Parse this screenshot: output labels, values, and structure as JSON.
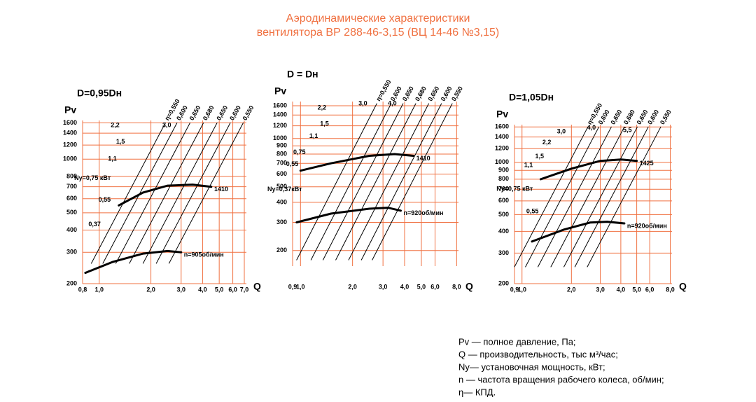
{
  "header": {
    "title": [
      "Аэродинамические характеристики",
      "вентилятора  ВР 288-46-3,15 (ВЦ 14-46 №3,15)"
    ]
  },
  "notes": [
    "Pv — полное давление, Па;",
    "Q  — производительность, тыс м³/час;",
    "Ny— установочная мощность, кВт;",
    "n — частота вращения рабочего колеса, об/мин;",
    "η— КПД."
  ],
  "chart_data": [
    {
      "type": "line",
      "title": "D=0,95Dн",
      "ylabel": "Pv",
      "xlabel": "Q",
      "xscale": "log",
      "yscale": "log",
      "grid": true,
      "grid_color": "#f07040",
      "xlim": [
        0.8,
        7.2
      ],
      "xticks": [
        {
          "value": 0.8,
          "label": "0,8"
        },
        {
          "value": 1.0,
          "label": "1,0"
        },
        {
          "value": 2.0,
          "label": "2,0"
        },
        {
          "value": 3.0,
          "label": "3,0"
        },
        {
          "value": 4.0,
          "label": "4,0"
        },
        {
          "value": 5.0,
          "label": "5,0"
        },
        {
          "value": 6.0,
          "label": "6,0"
        },
        {
          "value": 7.0,
          "label": "7,0"
        }
      ],
      "ylim": [
        200,
        1650
      ],
      "yticks": [
        200,
        300,
        400,
        500,
        600,
        700,
        800,
        1000,
        1200,
        1400,
        1600
      ],
      "series": [
        {
          "name": "1410",
          "color": "#000",
          "line_width": 3,
          "x": [
            1.3,
            1.8,
            2.5,
            3.5,
            4.5
          ],
          "values": [
            550,
            650,
            710,
            720,
            700
          ]
        },
        {
          "name": "n=905об/мин",
          "color": "#000",
          "line_width": 3,
          "x": [
            0.83,
            1.2,
            1.8,
            2.5,
            3.0
          ],
          "values": [
            230,
            265,
            295,
            305,
            300
          ]
        },
        {
          "name": "η=0,550",
          "color": "#000",
          "line_width": 1,
          "x": [
            0.9,
            2.43
          ],
          "values": [
            260,
            1600
          ]
        },
        {
          "name": "0,600",
          "color": "#000",
          "line_width": 1,
          "x": [
            1.05,
            2.84
          ],
          "values": [
            260,
            1600
          ]
        },
        {
          "name": "0,650",
          "color": "#000",
          "line_width": 1,
          "x": [
            1.25,
            3.38
          ],
          "values": [
            260,
            1600
          ]
        },
        {
          "name": "0,680",
          "color": "#000",
          "line_width": 1,
          "x": [
            1.5,
            4.05
          ],
          "values": [
            260,
            1600
          ]
        },
        {
          "name": "0,650",
          "color": "#000",
          "line_width": 1,
          "x": [
            1.8,
            4.86
          ],
          "values": [
            260,
            1600
          ]
        },
        {
          "name": "0,600",
          "color": "#000",
          "line_width": 1,
          "x": [
            2.15,
            5.8
          ],
          "values": [
            260,
            1600
          ]
        },
        {
          "name": "0,550",
          "color": "#000",
          "line_width": 1,
          "x": [
            2.55,
            6.9
          ],
          "values": [
            260,
            1600
          ]
        }
      ],
      "annotations": [
        {
          "text": "2,2",
          "x": 1.35,
          "y": 1550
        },
        {
          "text": "3,0",
          "x": 2.7,
          "y": 1550
        },
        {
          "text": "1,5",
          "x": 1.45,
          "y": 1250
        },
        {
          "text": "1,1",
          "x": 1.3,
          "y": 1000
        },
        {
          "text": "Ny=0,75 кВт",
          "x": 1.2,
          "y": 780
        },
        {
          "text": "0,55",
          "x": 1.2,
          "y": 590
        },
        {
          "text": "0,37",
          "x": 1.05,
          "y": 430
        }
      ]
    },
    {
      "type": "line",
      "title": "D = Dн",
      "ylabel": "Pv",
      "xlabel": "Q",
      "xscale": "log",
      "yscale": "log",
      "grid": true,
      "grid_color": "#f07040",
      "xlim": [
        0.9,
        8.2
      ],
      "xticks": [
        {
          "value": 0.9,
          "label": "0,9"
        },
        {
          "value": 1.0,
          "label": "1,0"
        },
        {
          "value": 2.0,
          "label": "2,0"
        },
        {
          "value": 3.0,
          "label": "3,0"
        },
        {
          "value": 4.0,
          "label": "4,0"
        },
        {
          "value": 5.0,
          "label": "5,0"
        },
        {
          "value": 6.0,
          "label": "6,0"
        },
        {
          "value": 8.0,
          "label": "8,0"
        }
      ],
      "ylim": [
        160,
        1700
      ],
      "yticks": [
        200,
        300,
        400,
        500,
        600,
        700,
        800,
        900,
        1000,
        1200,
        1400,
        1600
      ],
      "series": [
        {
          "name": "1410",
          "color": "#000",
          "line_width": 3,
          "x": [
            1.0,
            1.5,
            2.5,
            3.5,
            4.5
          ],
          "values": [
            630,
            700,
            780,
            800,
            780
          ]
        },
        {
          "name": "n=920об/мин",
          "color": "#000",
          "line_width": 3,
          "x": [
            0.95,
            1.5,
            2.5,
            3.2,
            3.8
          ],
          "values": [
            300,
            340,
            365,
            370,
            355
          ]
        },
        {
          "name": "η=0,550",
          "color": "#000",
          "line_width": 1,
          "x": [
            0.95,
            2.76
          ],
          "values": [
            175,
            1650
          ]
        },
        {
          "name": "0,600",
          "color": "#000",
          "line_width": 1,
          "x": [
            1.15,
            3.34
          ],
          "values": [
            175,
            1650
          ]
        },
        {
          "name": "0,650",
          "color": "#000",
          "line_width": 1,
          "x": [
            1.35,
            3.92
          ],
          "values": [
            175,
            1650
          ]
        },
        {
          "name": "0,680",
          "color": "#000",
          "line_width": 1,
          "x": [
            1.6,
            4.64
          ],
          "values": [
            175,
            1650
          ]
        },
        {
          "name": "0,650",
          "color": "#000",
          "line_width": 1,
          "x": [
            1.9,
            5.51
          ],
          "values": [
            175,
            1650
          ]
        },
        {
          "name": "0,600",
          "color": "#000",
          "line_width": 1,
          "x": [
            2.25,
            6.53
          ],
          "values": [
            175,
            1650
          ]
        },
        {
          "name": "0,550",
          "color": "#000",
          "line_width": 1,
          "x": [
            2.6,
            7.54
          ],
          "values": [
            175,
            1650
          ]
        }
      ],
      "annotations": [
        {
          "text": "2,2",
          "x": 1.45,
          "y": 1550
        },
        {
          "text": "3,0",
          "x": 2.5,
          "y": 1650
        },
        {
          "text": "4,0",
          "x": 3.7,
          "y": 1650
        },
        {
          "text": "1,5",
          "x": 1.5,
          "y": 1230
        },
        {
          "text": "1,1",
          "x": 1.3,
          "y": 1030
        },
        {
          "text": "0,75",
          "x": 1.1,
          "y": 820
        },
        {
          "text": "0,55",
          "x": 1.0,
          "y": 690
        },
        {
          "text": "Ny=0,37кВт",
          "x": 1.05,
          "y": 480
        }
      ]
    },
    {
      "type": "line",
      "title": "D=1,05Dн",
      "ylabel": "Pv",
      "xlabel": "Q",
      "xscale": "log",
      "yscale": "log",
      "grid": true,
      "grid_color": "#f07040",
      "xlim": [
        0.9,
        8.2
      ],
      "xticks": [
        {
          "value": 0.9,
          "label": "0,9"
        },
        {
          "value": 1.0,
          "label": "1,0"
        },
        {
          "value": 2.0,
          "label": "2,0"
        },
        {
          "value": 3.0,
          "label": "3,0"
        },
        {
          "value": 4.0,
          "label": "4,0"
        },
        {
          "value": 5.0,
          "label": "5,0"
        },
        {
          "value": 6.0,
          "label": "6,0"
        },
        {
          "value": 8.0,
          "label": "8,0"
        }
      ],
      "ylim": [
        200,
        1650
      ],
      "yticks": [
        200,
        300,
        400,
        500,
        600,
        700,
        800,
        900,
        1000,
        1200,
        1400,
        1600
      ],
      "series": [
        {
          "name": "1425",
          "color": "#000",
          "line_width": 3,
          "x": [
            1.3,
            2.0,
            3.0,
            4.0,
            5.0
          ],
          "values": [
            800,
            920,
            1020,
            1040,
            1020
          ]
        },
        {
          "name": "n=920об/мин",
          "color": "#000",
          "line_width": 3,
          "x": [
            1.15,
            1.8,
            2.6,
            3.3,
            4.2
          ],
          "values": [
            350,
            410,
            450,
            455,
            445
          ]
        },
        {
          "name": "η=0,550",
          "color": "#000",
          "line_width": 1,
          "x": [
            0.9,
            2.52
          ],
          "values": [
            250,
            1600
          ]
        },
        {
          "name": "0,600",
          "color": "#000",
          "line_width": 1,
          "x": [
            1.05,
            2.94
          ],
          "values": [
            250,
            1600
          ]
        },
        {
          "name": "0,650",
          "color": "#000",
          "line_width": 1,
          "x": [
            1.25,
            3.5
          ],
          "values": [
            250,
            1600
          ]
        },
        {
          "name": "0,680",
          "color": "#000",
          "line_width": 1,
          "x": [
            1.5,
            4.2
          ],
          "values": [
            250,
            1600
          ]
        },
        {
          "name": "0,650",
          "color": "#000",
          "line_width": 1,
          "x": [
            1.8,
            5.04
          ],
          "values": [
            250,
            1600
          ]
        },
        {
          "name": "0,600",
          "color": "#000",
          "line_width": 1,
          "x": [
            2.1,
            5.88
          ],
          "values": [
            250,
            1600
          ]
        },
        {
          "name": "0,550",
          "color": "#000",
          "line_width": 1,
          "x": [
            2.5,
            7.0
          ],
          "values": [
            250,
            1600
          ]
        }
      ],
      "annotations": [
        {
          "text": "3,0",
          "x": 1.9,
          "y": 1500
        },
        {
          "text": "4,0",
          "x": 2.9,
          "y": 1580
        },
        {
          "text": "5,5",
          "x": 4.8,
          "y": 1530
        },
        {
          "text": "2,2",
          "x": 1.55,
          "y": 1300
        },
        {
          "text": "1,5",
          "x": 1.4,
          "y": 1080
        },
        {
          "text": "1,1",
          "x": 1.2,
          "y": 960
        },
        {
          "text": "Ny=0,75 кВт",
          "x": 1.2,
          "y": 700
        },
        {
          "text": "0,55",
          "x": 1.3,
          "y": 520
        }
      ]
    }
  ]
}
